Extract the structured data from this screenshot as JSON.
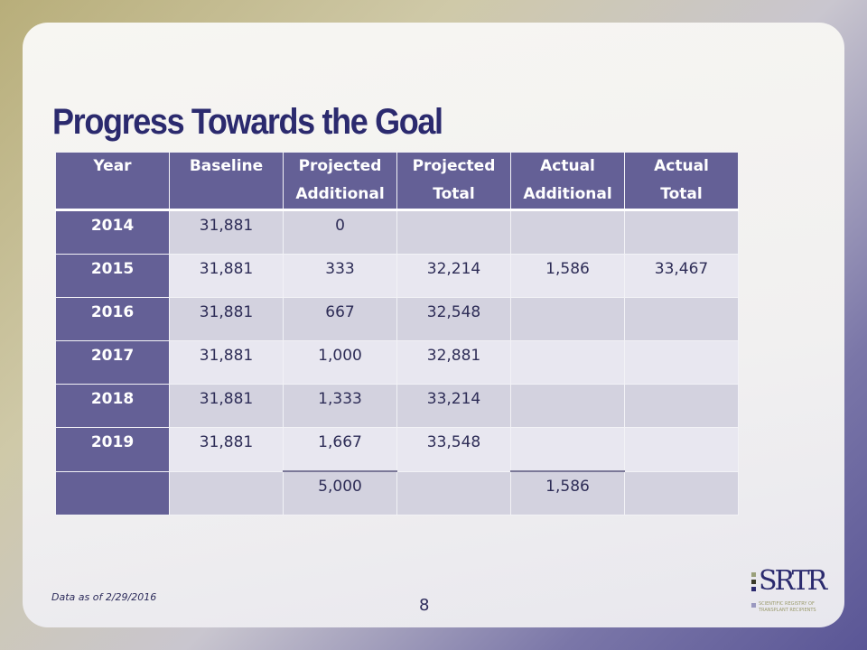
{
  "title": "Progress Towards the Goal",
  "table": {
    "headers": [
      [
        "Year",
        ""
      ],
      [
        "Baseline",
        ""
      ],
      [
        "Projected",
        "Additional"
      ],
      [
        "Projected",
        "Total"
      ],
      [
        "Actual",
        "Additional"
      ],
      [
        "Actual",
        "Total"
      ]
    ],
    "rows": [
      [
        "2014",
        "31,881",
        "0",
        "",
        "",
        ""
      ],
      [
        "2015",
        "31,881",
        "333",
        "32,214",
        "1,586",
        "33,467"
      ],
      [
        "2016",
        "31,881",
        "667",
        "32,548",
        "",
        ""
      ],
      [
        "2017",
        "31,881",
        "1,000",
        "32,881",
        "",
        ""
      ],
      [
        "2018",
        "31,881",
        "1,333",
        "33,214",
        "",
        ""
      ],
      [
        "2019",
        "31,881",
        "1,667",
        "33,548",
        "",
        ""
      ],
      [
        "",
        "",
        "5,000",
        "",
        "1,586",
        ""
      ]
    ]
  },
  "footer": {
    "note": "Data as of 2/29/2016",
    "page": "8"
  },
  "logo": {
    "name": "SRTR",
    "line1": "SCIENTIFIC REGISTRY OF",
    "line2": "TRANSPLANT RECIPIENTS"
  }
}
